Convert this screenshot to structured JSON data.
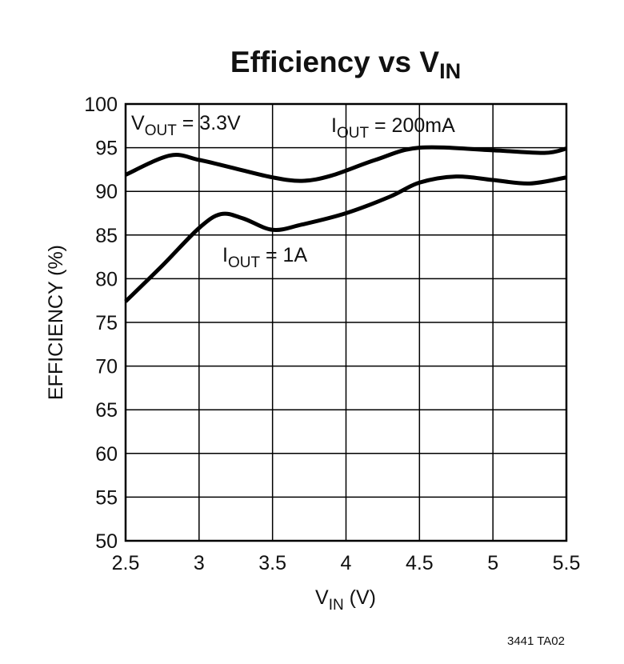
{
  "chart_data": {
    "type": "line",
    "title": {
      "main": "Efficiency vs V",
      "sub": "IN"
    },
    "xlabel": {
      "main": "V",
      "sub": "IN",
      "rest": " (V)"
    },
    "ylabel": "EFFICIENCY (%)",
    "xlim": [
      2.5,
      5.5
    ],
    "ylim": [
      50,
      100
    ],
    "grid": true,
    "xticks": [
      "2.5",
      "3",
      "3.5",
      "4",
      "4.5",
      "5",
      "5.5"
    ],
    "yticks": [
      "100",
      "95",
      "90",
      "85",
      "80",
      "75",
      "70",
      "65",
      "60",
      "55",
      "50"
    ],
    "annotations": {
      "vout": {
        "main": "V",
        "sub": "OUT",
        "rest": " = 3.3V"
      },
      "iout_200": {
        "main": "I",
        "sub": "OUT",
        "rest": " = 200mA"
      },
      "iout_1a": {
        "main": "I",
        "sub": "OUT",
        "rest": " = 1A"
      }
    },
    "series": [
      {
        "name": "IOUT = 200mA",
        "color": "#000000",
        "x": [
          2.5,
          2.8,
          3.0,
          3.25,
          3.5,
          3.7,
          3.9,
          4.2,
          4.5,
          5.0,
          5.35,
          5.5
        ],
        "y": [
          91.9,
          94.1,
          93.6,
          92.6,
          91.6,
          91.2,
          91.8,
          93.6,
          95.0,
          94.7,
          94.4,
          94.9
        ]
      },
      {
        "name": "IOUT = 1A",
        "color": "#000000",
        "x": [
          2.5,
          2.75,
          3.0,
          3.15,
          3.3,
          3.5,
          3.7,
          4.0,
          4.3,
          4.5,
          4.75,
          5.0,
          5.25,
          5.5
        ],
        "y": [
          77.4,
          81.5,
          85.8,
          87.4,
          86.9,
          85.6,
          86.2,
          87.5,
          89.4,
          91.0,
          91.7,
          91.3,
          90.9,
          91.6
        ]
      }
    ],
    "footnote": "3441 TA02"
  }
}
